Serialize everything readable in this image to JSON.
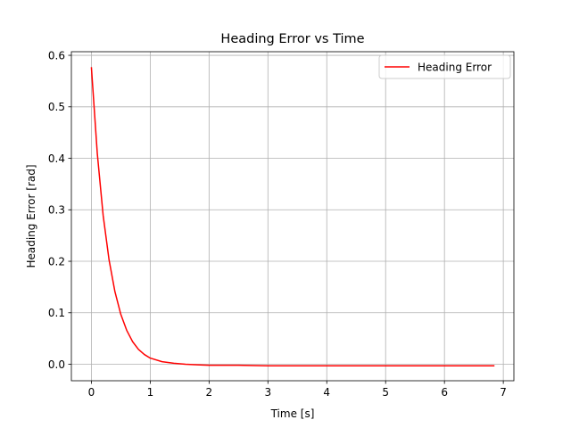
{
  "chart_data": {
    "type": "line",
    "title": "Heading Error vs Time",
    "xlabel": "Time [s]",
    "ylabel": "Heading Error [rad]",
    "xlim": [
      -0.34,
      7.18
    ],
    "ylim": [
      -0.032,
      0.607
    ],
    "xticks": [
      0,
      1,
      2,
      3,
      4,
      5,
      6,
      7
    ],
    "yticks": [
      0.0,
      0.1,
      0.2,
      0.3,
      0.4,
      0.5,
      0.6
    ],
    "grid": true,
    "legend": {
      "position": "top-right"
    },
    "series": [
      {
        "name": "Heading Error",
        "color": "#ff0000",
        "x": [
          0.0,
          0.1,
          0.2,
          0.3,
          0.4,
          0.5,
          0.6,
          0.7,
          0.8,
          0.9,
          1.0,
          1.2,
          1.4,
          1.6,
          1.8,
          2.0,
          2.5,
          3.0,
          4.0,
          5.0,
          6.0,
          6.85
        ],
        "y": [
          0.577,
          0.41,
          0.289,
          0.203,
          0.141,
          0.097,
          0.066,
          0.044,
          0.029,
          0.019,
          0.012,
          0.005,
          0.002,
          0.0,
          -0.001,
          -0.002,
          -0.002,
          -0.003,
          -0.003,
          -0.003,
          -0.003,
          -0.003
        ]
      }
    ]
  }
}
